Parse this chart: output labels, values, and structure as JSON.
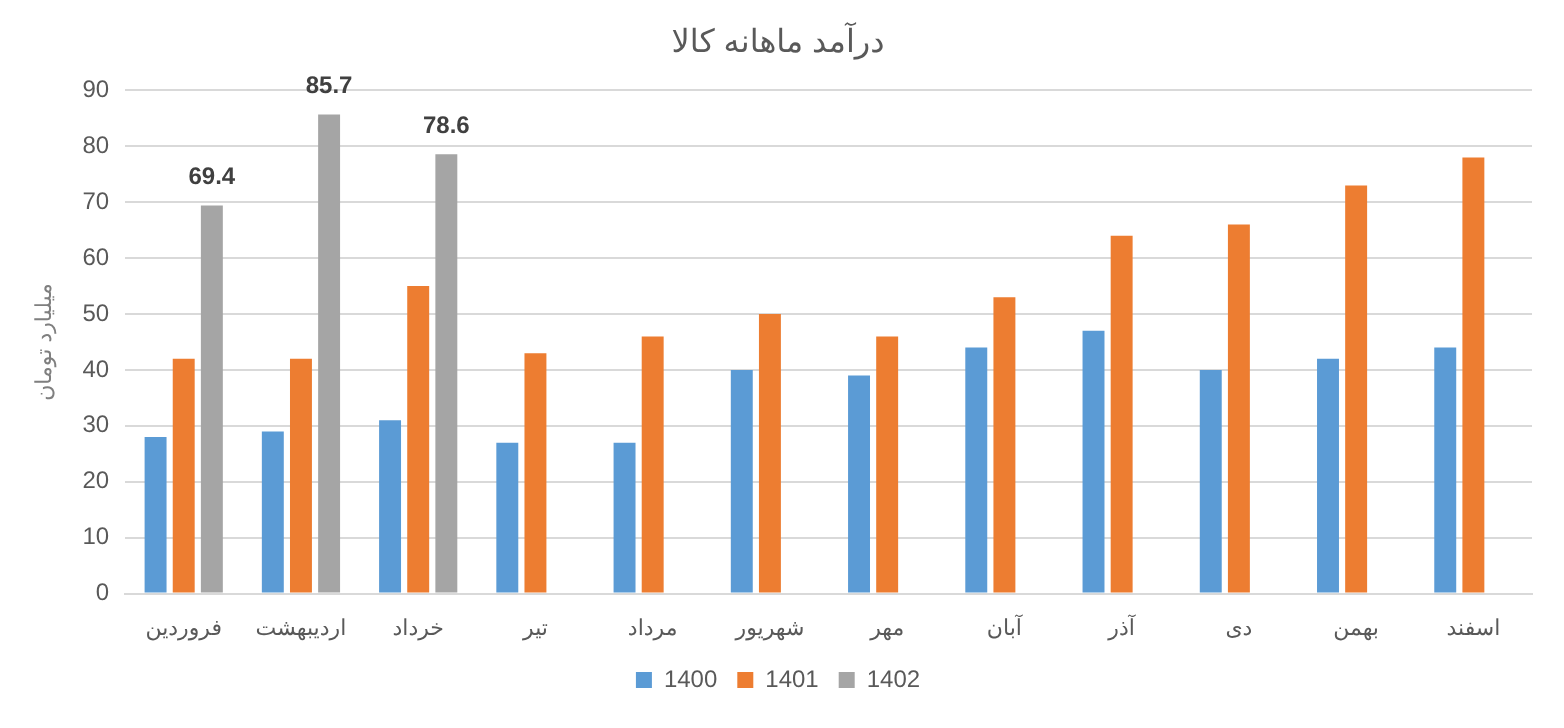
{
  "chart_data": {
    "type": "bar",
    "title": "درآمد ماهانه کالا",
    "ylabel": "میلیارد تومان",
    "categories": [
      "فروردین",
      "اردیبهشت",
      "خرداد",
      "تیر",
      "مرداد",
      "شهریور",
      "مهر",
      "آبان",
      "آذر",
      "دی",
      "بهمن",
      "اسفند"
    ],
    "series": [
      {
        "name": "1400",
        "color": "#5b9bd5",
        "values": [
          28,
          29,
          31,
          27,
          27,
          40,
          39,
          44,
          47,
          40,
          42,
          44
        ]
      },
      {
        "name": "1401",
        "color": "#ed7d31",
        "values": [
          42,
          42,
          55,
          43,
          46,
          50,
          46,
          53,
          64,
          66,
          73,
          78
        ]
      },
      {
        "name": "1402",
        "color": "#a5a5a5",
        "values": [
          69.4,
          85.7,
          78.6,
          null,
          null,
          null,
          null,
          null,
          null,
          null,
          null,
          null
        ],
        "value_labels": [
          "69.4",
          "85.7",
          "78.6",
          null,
          null,
          null,
          null,
          null,
          null,
          null,
          null,
          null
        ]
      }
    ],
    "ylim": [
      0,
      90
    ],
    "yticks": [
      0,
      10,
      20,
      30,
      40,
      50,
      60,
      70,
      80,
      90
    ],
    "grid": "y",
    "legend": "bottom"
  }
}
